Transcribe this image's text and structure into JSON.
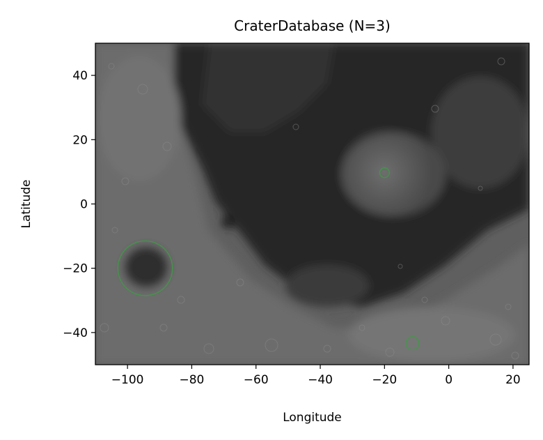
{
  "chart_data": {
    "type": "scatter",
    "title": "CraterDatabase (N=3)",
    "xlabel": "Longitude",
    "ylabel": "Latitude",
    "xlim": [
      -110,
      25
    ],
    "ylim": [
      -50,
      50
    ],
    "x_ticks": [
      -100,
      -80,
      -60,
      -40,
      -20,
      0,
      20
    ],
    "x_tick_labels": [
      "−100",
      "−80",
      "−60",
      "−40",
      "−20",
      "0",
      "20"
    ],
    "y_ticks": [
      -40,
      -20,
      0,
      20,
      40
    ],
    "y_tick_labels": [
      "−40",
      "−20",
      "0",
      "20",
      "40"
    ],
    "grid": false,
    "background": "lunar surface image",
    "marker_color": "#3f9a45",
    "series": [
      {
        "points": [
          {
            "lon": -94.5,
            "lat": -20.0,
            "diameter_deg": 17
          },
          {
            "lon": -20.0,
            "lat": 9.7,
            "diameter_deg": 3
          },
          {
            "lon": -11.3,
            "lat": -43.3,
            "diameter_deg": 4
          }
        ]
      }
    ]
  }
}
